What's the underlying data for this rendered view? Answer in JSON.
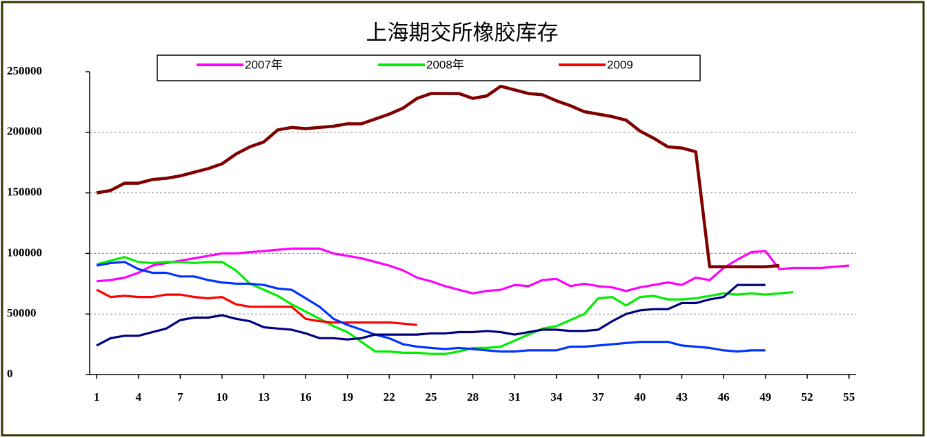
{
  "chart_data": {
    "type": "line",
    "title": "上海期交所橡胶库存",
    "x": [
      1,
      2,
      3,
      4,
      5,
      6,
      7,
      8,
      9,
      10,
      11,
      12,
      13,
      14,
      15,
      16,
      17,
      18,
      19,
      20,
      21,
      22,
      23,
      24,
      25,
      26,
      27,
      28,
      29,
      30,
      31,
      32,
      33,
      34,
      35,
      36,
      37,
      38,
      39,
      40,
      41,
      42,
      43,
      44,
      45,
      46,
      47,
      48,
      49,
      50,
      51,
      52,
      53,
      54,
      55
    ],
    "xlim": [
      0.5,
      55.5
    ],
    "xticks": [
      1,
      4,
      7,
      10,
      13,
      16,
      19,
      22,
      25,
      28,
      31,
      34,
      37,
      40,
      43,
      46,
      49,
      52,
      55
    ],
    "ylim": [
      0,
      250000
    ],
    "yticks": [
      0,
      50000,
      100000,
      150000,
      200000,
      250000
    ],
    "grid": true,
    "legend": "top",
    "series": [
      {
        "name": "2007年",
        "color": "#ff00ff",
        "values": [
          77000,
          78000,
          80000,
          84000,
          90000,
          92000,
          94000,
          96000,
          98000,
          100000,
          100000,
          101000,
          102000,
          103000,
          104000,
          104000,
          104000,
          100000,
          98000,
          96000,
          93000,
          90000,
          86000,
          80000,
          77000,
          73000,
          70000,
          67000,
          69000,
          70000,
          74000,
          73000,
          78000,
          79000,
          73000,
          75000,
          73000,
          72000,
          69000,
          72000,
          74000,
          76000,
          74000,
          80000,
          78000,
          88000,
          95000,
          101000,
          102000,
          87000,
          88000,
          88000,
          88000,
          89000,
          90000
        ]
      },
      {
        "name": "2008年",
        "color": "#00ee00",
        "values": [
          91000,
          94000,
          97000,
          93000,
          92000,
          93000,
          93000,
          92000,
          93000,
          93000,
          86000,
          75000,
          70000,
          65000,
          58000,
          52000,
          46000,
          40000,
          35000,
          27000,
          19000,
          19000,
          18000,
          18000,
          17000,
          17000,
          19000,
          22000,
          22000,
          23000,
          28000,
          33000,
          38000,
          40000,
          45000,
          50000,
          63000,
          64000,
          57000,
          64000,
          65000,
          62000,
          62000,
          63000,
          65000,
          67000,
          66000,
          67000,
          66000,
          67000,
          68000,
          null,
          null,
          null,
          null
        ]
      },
      {
        "name": "2009",
        "color": "#ff0000",
        "values": [
          70000,
          64000,
          65000,
          64000,
          64000,
          66000,
          66000,
          64000,
          63000,
          64000,
          58000,
          56000,
          56000,
          56000,
          56000,
          46000,
          44000,
          43000,
          43000,
          43000,
          43000,
          43000,
          42000,
          41000,
          null,
          null,
          null,
          null,
          null,
          null,
          null,
          null,
          null,
          null,
          null,
          null,
          null,
          null,
          null,
          null,
          null,
          null,
          null,
          null,
          null,
          null,
          null,
          null,
          null,
          null,
          null,
          null,
          null,
          null,
          null
        ]
      },
      {
        "color": "#0033ff",
        "values": [
          90000,
          92000,
          93000,
          87000,
          84000,
          84000,
          81000,
          81000,
          78000,
          76000,
          75000,
          75000,
          74000,
          71000,
          70000,
          63000,
          56000,
          46000,
          41000,
          37000,
          33000,
          30000,
          25000,
          23000,
          22000,
          21000,
          22000,
          21000,
          20000,
          19000,
          19000,
          20000,
          20000,
          20000,
          23000,
          23000,
          24000,
          25000,
          26000,
          27000,
          27000,
          27000,
          24000,
          23000,
          22000,
          20000,
          19000,
          20000,
          20000,
          null,
          null,
          null,
          null,
          null,
          null
        ]
      },
      {
        "color": "#000080",
        "values": [
          24000,
          30000,
          32000,
          32000,
          35000,
          38000,
          45000,
          47000,
          47000,
          49000,
          46000,
          44000,
          39000,
          38000,
          37000,
          34000,
          30000,
          30000,
          29000,
          30000,
          33000,
          33000,
          33000,
          33000,
          34000,
          34000,
          35000,
          35000,
          36000,
          35000,
          33000,
          35000,
          37000,
          37000,
          36000,
          36000,
          37000,
          44000,
          50000,
          53000,
          54000,
          54000,
          59000,
          59000,
          62000,
          64000,
          74000,
          74000,
          74000,
          null,
          null,
          null,
          null,
          null,
          null
        ]
      },
      {
        "color": "#800000",
        "values": [
          150000,
          152000,
          158000,
          158000,
          161000,
          162000,
          164000,
          167000,
          170000,
          174000,
          182000,
          188000,
          192000,
          202000,
          204000,
          203000,
          204000,
          205000,
          207000,
          207000,
          211000,
          215000,
          220000,
          228000,
          232000,
          232000,
          232000,
          228000,
          230000,
          238000,
          235000,
          232000,
          231000,
          226000,
          222000,
          217000,
          215000,
          213000,
          210000,
          201000,
          195000,
          188000,
          187000,
          184000,
          89000,
          89000,
          89000,
          89000,
          89000,
          90000,
          null,
          null,
          null,
          null,
          null
        ]
      }
    ]
  }
}
